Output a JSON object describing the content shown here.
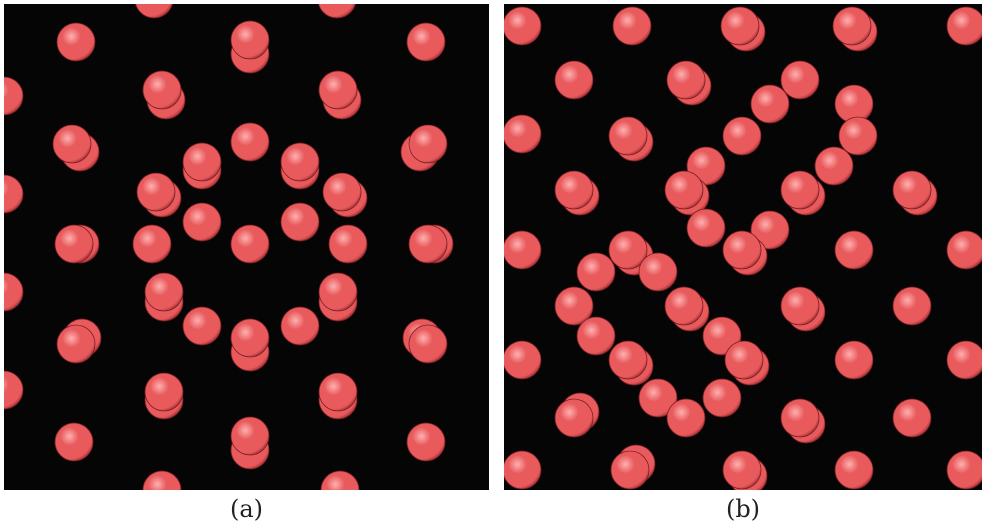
{
  "captions": {
    "a": "(a)",
    "b": "(b)"
  },
  "colors": {
    "background": "#050505",
    "atom": "#e85a5c",
    "atom_highlight": "#ffb0b0",
    "atom_shadow": "#9a2c30"
  }
}
